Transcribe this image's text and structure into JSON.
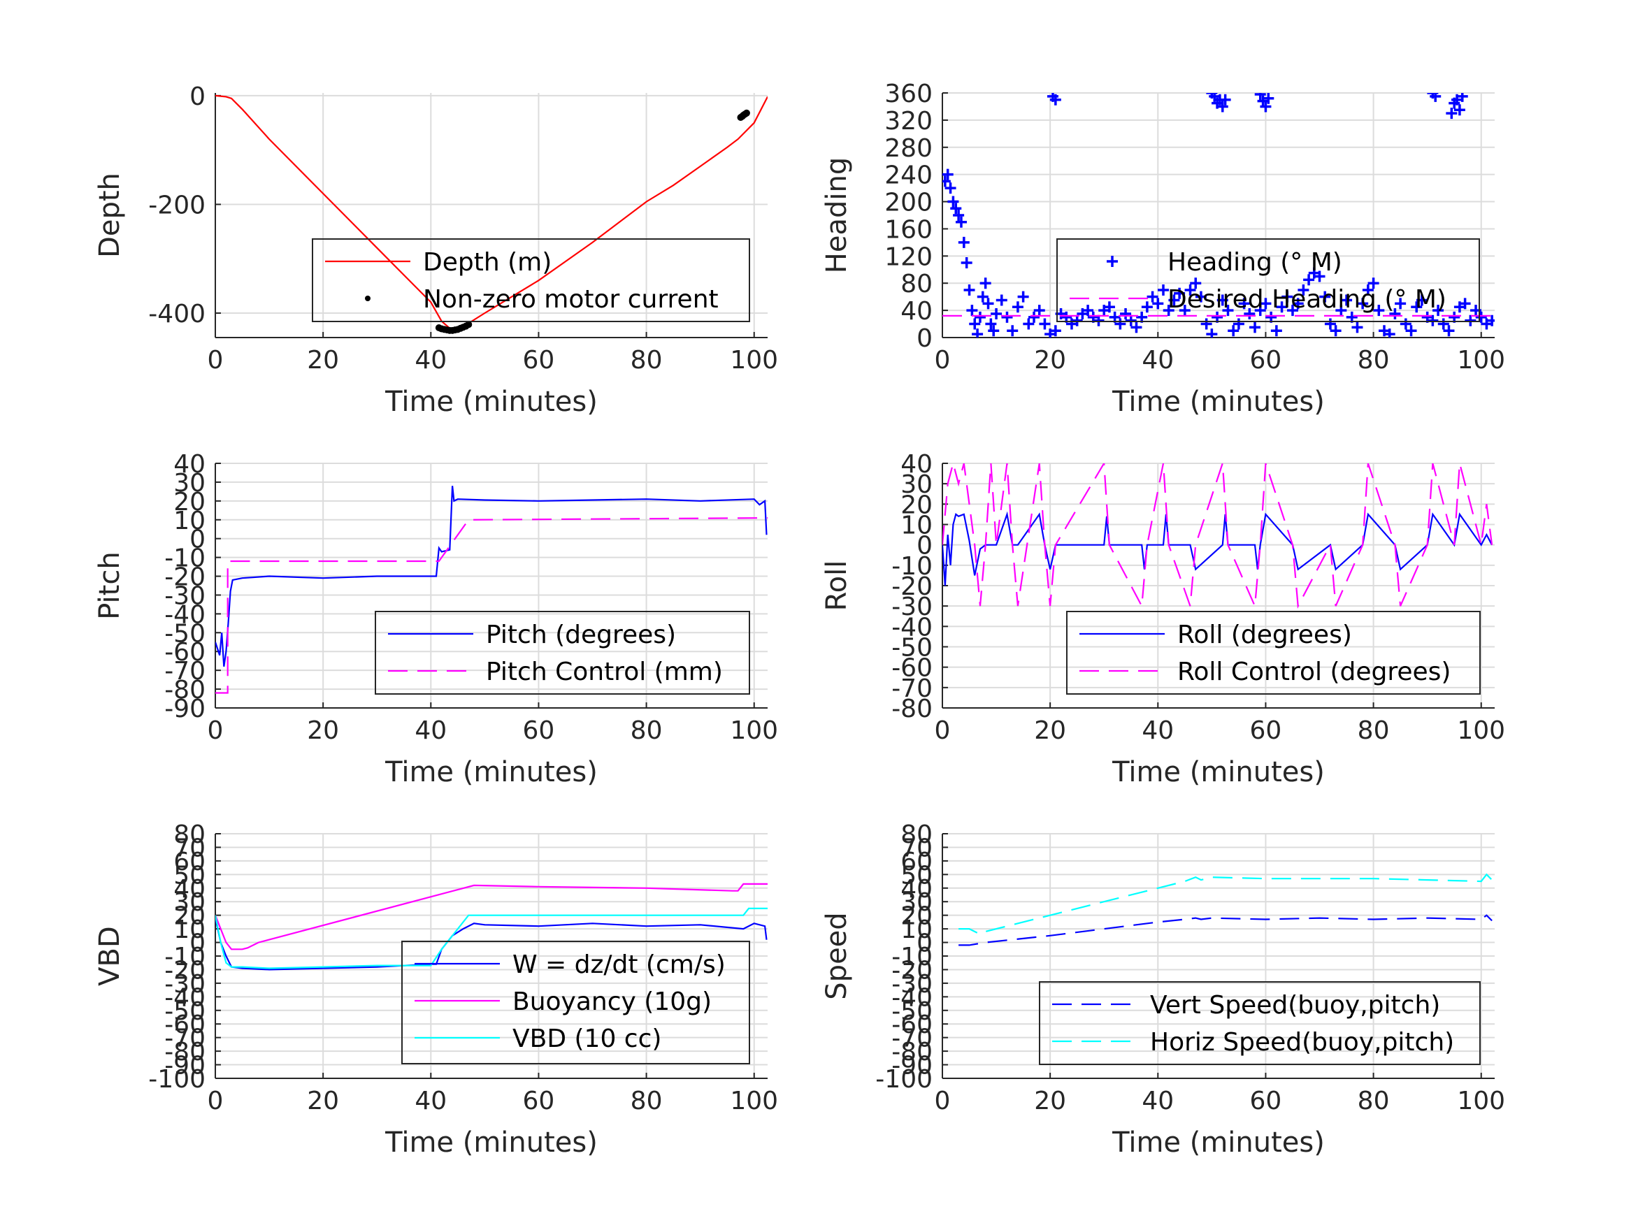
{
  "colors": {
    "red": "#ff0000",
    "blue": "#0000ff",
    "magenta": "#ff00ff",
    "cyan": "#00ffff",
    "black": "#000000",
    "grid": "#dcdcdc",
    "axis": "#262626"
  },
  "chart_data": [
    {
      "id": "depth",
      "type": "line",
      "xlabel": "Time (minutes)",
      "ylabel": "Depth",
      "xlim": [
        0,
        102.5
      ],
      "ylim": [
        -445,
        5
      ],
      "xticks": [
        0,
        20,
        40,
        60,
        80,
        100
      ],
      "yticks": [
        0,
        -200,
        -400
      ],
      "grid": true,
      "legend_placement": "lower-right",
      "series": [
        {
          "name": "Depth (m)",
          "style": "line",
          "color": "#ff0000",
          "x": [
            0,
            2,
            3,
            5,
            10,
            20,
            30,
            40,
            42,
            44,
            46,
            50,
            60,
            70,
            80,
            85,
            90,
            95,
            97,
            100,
            102.5
          ],
          "y": [
            0,
            -2,
            -5,
            -25,
            -80,
            -180,
            -280,
            -380,
            -415,
            -432,
            -425,
            -400,
            -340,
            -270,
            -195,
            -165,
            -130,
            -95,
            -80,
            -50,
            -2
          ]
        },
        {
          "name": "Non-zero motor current",
          "style": "dots",
          "color": "#000000",
          "x": [
            41.5,
            42,
            42.5,
            43,
            43.5,
            44,
            44.5,
            45,
            45.5,
            46,
            46.5,
            47,
            97.5,
            97.8,
            98,
            98.3,
            98.6
          ],
          "y": [
            -427,
            -429,
            -430,
            -431,
            -432,
            -432,
            -431,
            -430,
            -428,
            -426,
            -424,
            -421,
            -40,
            -38,
            -36,
            -34,
            -32
          ]
        }
      ]
    },
    {
      "id": "heading",
      "type": "scatter",
      "xlabel": "Time (minutes)",
      "ylabel": "Heading",
      "xlim": [
        0,
        102.5
      ],
      "ylim": [
        0,
        360
      ],
      "xticks": [
        0,
        20,
        40,
        60,
        80,
        100
      ],
      "yticks": [
        0,
        40,
        80,
        120,
        160,
        200,
        240,
        280,
        320,
        360
      ],
      "grid": true,
      "legend_placement": "center-right",
      "series": [
        {
          "name": "Heading (° M)",
          "style": "plus",
          "color": "#0000ff",
          "x": [
            0.5,
            1,
            1.5,
            2,
            2.5,
            3,
            3.5,
            4,
            4.5,
            5,
            5.5,
            6,
            6.5,
            7,
            7.5,
            8,
            8.5,
            9,
            9.5,
            10,
            11,
            12,
            13,
            14,
            15,
            16,
            17,
            18,
            19,
            20,
            21,
            22,
            23,
            24,
            25,
            26,
            27,
            28,
            29,
            30,
            31,
            32,
            33,
            34,
            35,
            36,
            37,
            38,
            39,
            40,
            41,
            42,
            43,
            44,
            45,
            46,
            47,
            48,
            49,
            50,
            51,
            52,
            53,
            54,
            55,
            56,
            57,
            58,
            59,
            60,
            61,
            62,
            63,
            64,
            65,
            66,
            67,
            68,
            69,
            70,
            71,
            72,
            73,
            74,
            75,
            76,
            77,
            78,
            79,
            80,
            81,
            82,
            83,
            84,
            85,
            86,
            87,
            88,
            89,
            90,
            91,
            92,
            93,
            94,
            95,
            96,
            97,
            98,
            99,
            100,
            101,
            102,
            20.5,
            21,
            50,
            50.5,
            51,
            51.5,
            52,
            52.5,
            59,
            59.5,
            60,
            60.5,
            91,
            91.5,
            94.5,
            95,
            95.5,
            96,
            96.5
          ],
          "y": [
            230,
            240,
            220,
            200,
            190,
            180,
            170,
            140,
            110,
            70,
            40,
            20,
            5,
            30,
            60,
            80,
            50,
            20,
            10,
            35,
            55,
            30,
            10,
            45,
            60,
            20,
            30,
            40,
            20,
            5,
            10,
            35,
            30,
            20,
            25,
            35,
            40,
            30,
            25,
            40,
            45,
            30,
            20,
            35,
            25,
            15,
            30,
            45,
            60,
            50,
            70,
            40,
            55,
            65,
            40,
            70,
            80,
            60,
            20,
            5,
            30,
            55,
            40,
            10,
            20,
            50,
            35,
            15,
            40,
            50,
            30,
            10,
            45,
            60,
            40,
            50,
            70,
            85,
            95,
            90,
            60,
            20,
            10,
            40,
            55,
            30,
            15,
            50,
            70,
            80,
            40,
            10,
            5,
            35,
            50,
            20,
            10,
            45,
            55,
            30,
            25,
            40,
            20,
            10,
            30,
            45,
            50,
            25,
            40,
            30,
            20,
            25,
            355,
            350,
            360,
            355,
            345,
            350,
            340,
            350,
            358,
            348,
            340,
            352,
            360,
            355,
            330,
            345,
            350,
            335,
            355
          ]
        },
        {
          "name": "Desired Heading (° M)",
          "style": "dash",
          "color": "#ff00ff",
          "x": [
            0,
            102.5
          ],
          "y": [
            32,
            32
          ]
        }
      ]
    },
    {
      "id": "pitch",
      "type": "line",
      "xlabel": "Time (minutes)",
      "ylabel": "Pitch",
      "xlim": [
        0,
        102.5
      ],
      "ylim": [
        -90,
        40
      ],
      "xticks": [
        0,
        20,
        40,
        60,
        80,
        100
      ],
      "yticks": [
        40,
        30,
        20,
        10,
        0,
        -10,
        -20,
        -30,
        -40,
        -50,
        -60,
        -70,
        -80,
        -90
      ],
      "grid": true,
      "legend_placement": "lower-right",
      "series": [
        {
          "name": "Pitch (degrees)",
          "style": "line",
          "color": "#0000ff",
          "x": [
            0,
            0.8,
            1.2,
            1.6,
            2.0,
            2.4,
            2.8,
            3.2,
            5,
            10,
            20,
            30,
            40,
            41,
            41.5,
            42,
            43.5,
            44,
            44.3,
            45,
            50,
            60,
            70,
            80,
            90,
            100,
            101,
            102,
            102.3
          ],
          "y": [
            -55,
            -62,
            -50,
            -68,
            -60,
            -45,
            -28,
            -22,
            -21,
            -20,
            -21,
            -20,
            -20,
            -20,
            -5,
            -7,
            -6,
            28,
            20,
            21,
            20.5,
            20,
            20.5,
            21,
            20,
            21,
            18,
            20,
            2
          ]
        },
        {
          "name": "Pitch Control (mm)",
          "style": "dash",
          "color": "#ff00ff",
          "x": [
            0,
            2.3,
            2.3,
            41.5,
            41.5,
            47,
            102.5
          ],
          "y": [
            -82,
            -82,
            -12,
            -12,
            -12,
            10,
            11
          ]
        }
      ]
    },
    {
      "id": "roll",
      "type": "line",
      "xlabel": "Time (minutes)",
      "ylabel": "Roll",
      "xlim": [
        0,
        102.5
      ],
      "ylim": [
        -80,
        40
      ],
      "xticks": [
        0,
        20,
        40,
        60,
        80,
        100
      ],
      "yticks": [
        40,
        30,
        20,
        10,
        0,
        -10,
        -20,
        -30,
        -40,
        -50,
        -60,
        -70,
        -80
      ],
      "grid": true,
      "legend_placement": "lower-right",
      "series": [
        {
          "name": "Roll (degrees)",
          "style": "line",
          "color": "#0000ff",
          "x": [
            0,
            0.5,
            1,
            1.5,
            2,
            2.5,
            3,
            4,
            5,
            6,
            7,
            8,
            9,
            10,
            12,
            13,
            14,
            18,
            19,
            20,
            21,
            22,
            30,
            30.5,
            31,
            37,
            37.5,
            38,
            41,
            41.5,
            42,
            46,
            47,
            52,
            52.5,
            53,
            58,
            58.5,
            59,
            60,
            65,
            66,
            72,
            73,
            78,
            79,
            84,
            85,
            90,
            91,
            95,
            96,
            100,
            101,
            102
          ],
          "y": [
            0,
            -20,
            5,
            -10,
            10,
            15,
            14,
            15,
            2,
            -15,
            -2,
            0,
            0,
            0,
            15,
            0,
            0,
            15,
            0,
            -12,
            0,
            0,
            0,
            14,
            0,
            0,
            -12,
            0,
            0,
            15,
            0,
            0,
            -12,
            0,
            15,
            0,
            0,
            -12,
            0,
            15,
            0,
            -12,
            0,
            -12,
            0,
            15,
            0,
            -12,
            0,
            15,
            0,
            15,
            0,
            5,
            0
          ]
        },
        {
          "name": "Roll Control (degrees)",
          "style": "dash",
          "color": "#ff00ff",
          "x": [
            0,
            1,
            2,
            3,
            4,
            6,
            7,
            8,
            9,
            10,
            12,
            13,
            14,
            18,
            19,
            20,
            21,
            30,
            31,
            37,
            38,
            41,
            42,
            46,
            47,
            52,
            53,
            58,
            59,
            60,
            65,
            66,
            72,
            73,
            78,
            79,
            84,
            85,
            90,
            91,
            95,
            96,
            100,
            101,
            102
          ],
          "y": [
            0,
            30,
            40,
            30,
            40,
            0,
            -30,
            0,
            40,
            0,
            40,
            0,
            -30,
            40,
            0,
            -30,
            0,
            40,
            0,
            -30,
            0,
            40,
            0,
            -30,
            0,
            40,
            0,
            -30,
            0,
            40,
            0,
            -30,
            0,
            -30,
            0,
            40,
            0,
            -30,
            0,
            40,
            0,
            40,
            0,
            20,
            0
          ]
        }
      ]
    },
    {
      "id": "vbd",
      "type": "line",
      "xlabel": "Time (minutes)",
      "ylabel": "VBD",
      "xlim": [
        0,
        102.5
      ],
      "ylim": [
        -100,
        80
      ],
      "xticks": [
        0,
        20,
        40,
        60,
        80,
        100
      ],
      "yticks": [
        80,
        70,
        60,
        50,
        40,
        30,
        20,
        10,
        0,
        -10,
        -20,
        -30,
        -40,
        -50,
        -60,
        -70,
        -80,
        -90,
        -100
      ],
      "grid": true,
      "legend_placement": "lower-right",
      "series": [
        {
          "name": "W = dz/dt (cm/s)",
          "style": "line",
          "color": "#0000ff",
          "x": [
            0,
            1,
            2,
            3,
            5,
            10,
            20,
            30,
            40,
            41,
            42,
            44,
            46,
            48,
            50,
            60,
            70,
            80,
            90,
            98,
            100,
            102,
            102.3
          ],
          "y": [
            18,
            0,
            -10,
            -18,
            -19,
            -20,
            -19,
            -18,
            -16,
            -16,
            -5,
            5,
            10,
            14,
            13,
            12,
            14,
            12,
            13,
            10,
            14,
            12,
            2
          ]
        },
        {
          "name": "Buoyancy (10g)",
          "style": "line",
          "color": "#ff00ff",
          "x": [
            0,
            2,
            3,
            5,
            6,
            8,
            48,
            60,
            80,
            96,
            97,
            98,
            102.5
          ],
          "y": [
            20,
            0,
            -5,
            -5,
            -4,
            0,
            42,
            41,
            40,
            38,
            38,
            43,
            43
          ]
        },
        {
          "name": "VBD (10 cc)",
          "style": "line",
          "color": "#00ffff",
          "x": [
            0,
            1,
            2,
            3,
            5,
            10,
            20,
            30,
            40,
            42,
            47,
            50,
            60,
            80,
            98,
            99,
            100,
            102.5
          ],
          "y": [
            20,
            0,
            -15,
            -18,
            -18,
            -19,
            -18,
            -17,
            -17,
            -5,
            20,
            20,
            20,
            20,
            20,
            25,
            25,
            25
          ]
        }
      ]
    },
    {
      "id": "speed",
      "type": "line",
      "xlabel": "Time (minutes)",
      "ylabel": "Speed",
      "xlim": [
        0,
        102.5
      ],
      "ylim": [
        -100,
        80
      ],
      "xticks": [
        0,
        20,
        40,
        60,
        80,
        100
      ],
      "yticks": [
        80,
        70,
        60,
        50,
        40,
        30,
        20,
        10,
        0,
        -10,
        -20,
        -30,
        -40,
        -50,
        -60,
        -70,
        -80,
        -90,
        -100
      ],
      "grid": true,
      "legend_placement": "lower-right",
      "series": [
        {
          "name": "Vert Speed(buoy,pitch)",
          "style": "dash",
          "color": "#0000ff",
          "x": [
            3,
            5,
            8,
            20,
            30,
            40,
            45,
            47,
            48,
            50,
            60,
            70,
            80,
            90,
            100,
            101,
            102
          ],
          "y": [
            -2,
            -2,
            0,
            5,
            10,
            15,
            17,
            18,
            17,
            18,
            17,
            18,
            17,
            18,
            17,
            20,
            16
          ]
        },
        {
          "name": "Horiz Speed(buoy,pitch)",
          "style": "dash",
          "color": "#00ffff",
          "x": [
            3,
            5,
            7,
            8,
            20,
            30,
            40,
            45,
            47,
            48,
            50,
            60,
            70,
            80,
            90,
            100,
            101,
            102
          ],
          "y": [
            10,
            10,
            6,
            8,
            20,
            30,
            40,
            45,
            48,
            46,
            48,
            47,
            47,
            47,
            46,
            45,
            50,
            46
          ]
        }
      ]
    }
  ]
}
